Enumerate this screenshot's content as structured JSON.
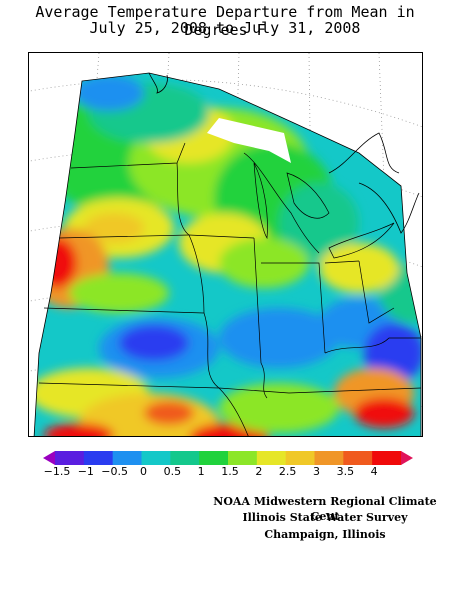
{
  "title": {
    "line1": "Average Temperature Departure from Mean in Degrees F",
    "line2": "July 25, 2008 to July 31, 2008"
  },
  "legend": {
    "ticks": [
      "-1.5",
      "-1",
      "-0.5",
      "0",
      "0.5",
      "1",
      "1.5",
      "2",
      "2.5",
      "3",
      "3.5",
      "4"
    ],
    "colors": [
      "#9a00c0",
      "#5a1ee0",
      "#2a3cf0",
      "#1e90f0",
      "#14c8c8",
      "#14c88c",
      "#20d23c",
      "#8ce628",
      "#e6e628",
      "#f0c828",
      "#f09628",
      "#f05a1e",
      "#f00a0a",
      "#e0145a"
    ]
  },
  "credits": {
    "line1": "NOAA Midwestern Regional Climate Cent",
    "line2": "Illinois State Water Survey",
    "line3": "Champaign, Illinois"
  }
}
